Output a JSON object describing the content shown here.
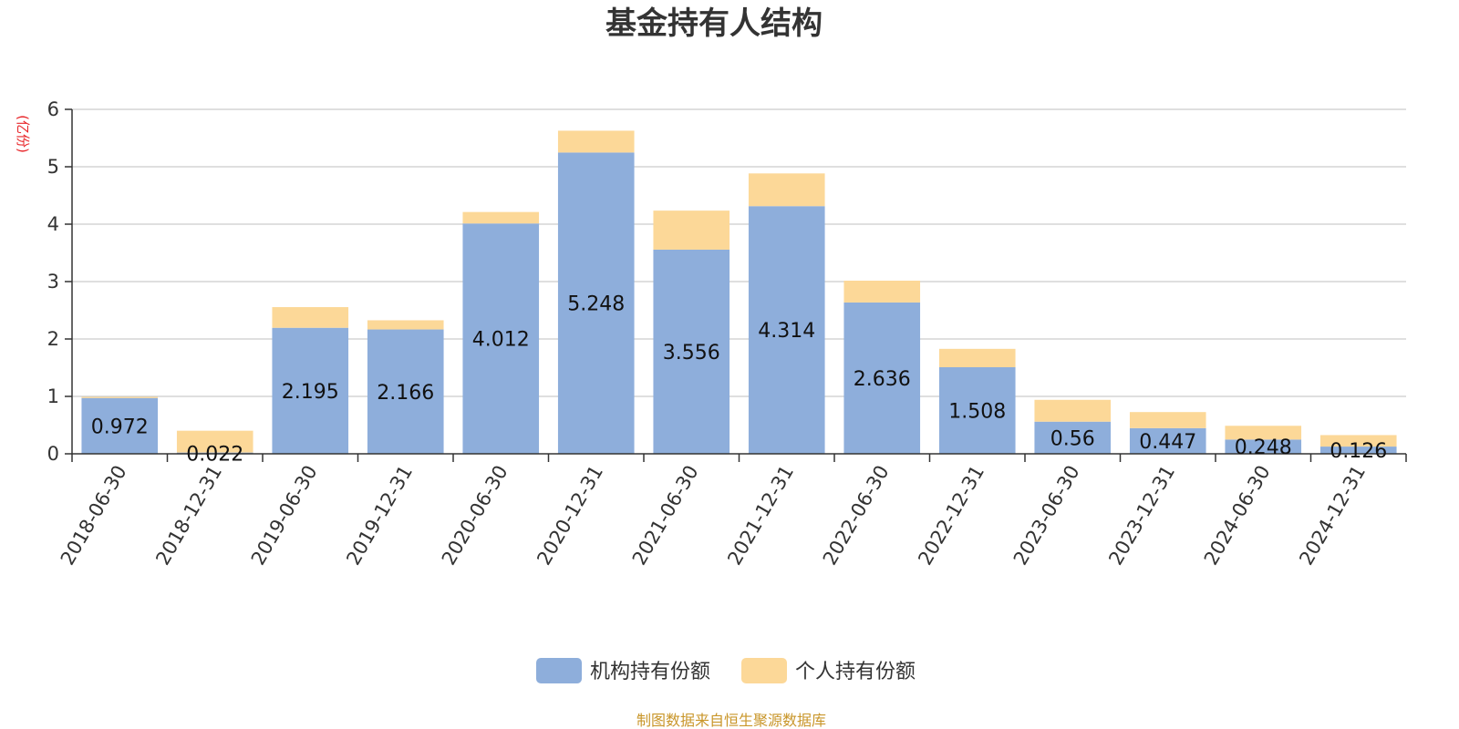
{
  "chart_data": {
    "type": "bar",
    "stacked": true,
    "title": "基金持有人结构",
    "unit_label": "(亿份)",
    "categories": [
      "2018-06-30",
      "2018-12-31",
      "2019-06-30",
      "2019-12-31",
      "2020-06-30",
      "2020-12-31",
      "2021-06-30",
      "2021-12-31",
      "2022-06-30",
      "2022-12-31",
      "2023-06-30",
      "2023-12-31",
      "2024-06-30",
      "2024-12-31"
    ],
    "series": [
      {
        "name": "机构持有份额",
        "color": "#8eaedb",
        "values": [
          0.972,
          0.022,
          2.195,
          2.166,
          4.012,
          5.248,
          3.556,
          4.314,
          2.636,
          1.508,
          0.56,
          0.447,
          0.248,
          0.126
        ]
      },
      {
        "name": "个人持有份额",
        "color": "#fcd898",
        "values": [
          0.02,
          0.38,
          0.36,
          0.16,
          0.2,
          0.38,
          0.68,
          0.57,
          0.38,
          0.32,
          0.38,
          0.28,
          0.24,
          0.2
        ]
      }
    ],
    "data_labels": [
      "0.972",
      "0.022",
      "2.195",
      "2.166",
      "4.012",
      "5.248",
      "3.556",
      "4.314",
      "2.636",
      "1.508",
      "0.56",
      "0.447",
      "0.248",
      "0.126"
    ],
    "y_ticks": [
      "0",
      "1",
      "2",
      "3",
      "4",
      "5",
      "6"
    ],
    "ylim": [
      0,
      6
    ],
    "grid": true,
    "legend_position": "bottom-center"
  },
  "footer": {
    "source": "制图数据来自恒生聚源数据库"
  }
}
